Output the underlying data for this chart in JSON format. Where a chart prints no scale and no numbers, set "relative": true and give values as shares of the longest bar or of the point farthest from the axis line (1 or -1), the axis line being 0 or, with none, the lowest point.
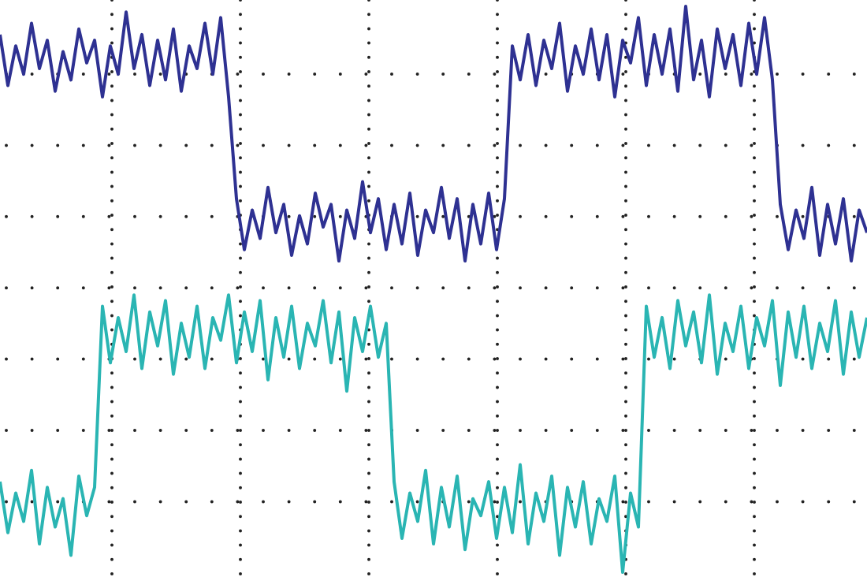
{
  "chart_data": {
    "type": "line",
    "relative": true,
    "grid": true,
    "line_style": "solid",
    "categories": [
      null,
      null,
      null,
      null,
      null,
      null,
      null,
      null,
      null,
      null,
      null,
      null,
      null,
      null,
      null,
      null,
      null,
      null,
      null,
      null,
      null,
      null,
      null,
      null,
      null,
      null,
      null,
      null,
      null,
      null,
      null,
      null,
      null,
      null,
      null,
      null,
      null,
      null,
      null,
      null,
      null,
      null,
      null,
      null,
      null,
      null,
      null,
      null,
      null,
      null,
      null,
      null,
      null,
      null,
      null,
      null,
      null,
      null,
      null,
      null,
      null,
      null,
      null,
      null,
      null,
      null,
      null,
      null,
      null,
      null,
      null,
      null,
      null,
      null,
      null,
      null,
      null,
      null,
      null,
      null,
      null,
      null,
      null,
      null,
      null,
      null,
      null,
      null,
      null,
      null,
      null,
      null,
      null,
      null,
      null,
      null,
      null,
      null,
      null,
      null,
      null,
      null,
      null,
      null,
      null,
      null,
      null,
      null,
      null,
      null,
      null
    ],
    "series": [
      {
        "color": "#2e3192",
        "values": [
          0.95,
          0.86,
          0.93,
          0.88,
          0.97,
          0.89,
          0.94,
          0.85,
          0.92,
          0.87,
          0.96,
          0.9,
          0.94,
          0.84,
          0.93,
          0.88,
          0.99,
          0.89,
          0.95,
          0.86,
          0.94,
          0.87,
          0.96,
          0.85,
          0.93,
          0.89,
          0.97,
          0.88,
          0.98,
          0.84,
          0.66,
          0.57,
          0.64,
          0.59,
          0.68,
          0.6,
          0.65,
          0.56,
          0.63,
          0.58,
          0.67,
          0.61,
          0.65,
          0.55,
          0.64,
          0.59,
          0.69,
          0.6,
          0.66,
          0.57,
          0.65,
          0.58,
          0.67,
          0.56,
          0.64,
          0.6,
          0.68,
          0.59,
          0.66,
          0.55,
          0.65,
          0.58,
          0.67,
          0.57,
          0.66,
          0.93,
          0.87,
          0.95,
          0.86,
          0.94,
          0.89,
          0.97,
          0.85,
          0.93,
          0.88,
          0.96,
          0.87,
          0.95,
          0.84,
          0.94,
          0.9,
          0.98,
          0.86,
          0.95,
          0.88,
          0.96,
          0.85,
          1.0,
          0.87,
          0.94,
          0.84,
          0.96,
          0.89,
          0.95,
          0.86,
          0.97,
          0.88,
          0.98,
          0.87,
          0.65,
          0.57,
          0.64,
          0.59,
          0.68,
          0.56,
          0.65,
          0.58,
          0.66,
          0.55,
          0.64,
          0.6
        ]
      },
      {
        "color": "#2ab5b3",
        "values": [
          0.16,
          0.07,
          0.14,
          0.09,
          0.18,
          0.05,
          0.15,
          0.08,
          0.13,
          0.03,
          0.17,
          0.1,
          0.15,
          0.47,
          0.37,
          0.45,
          0.39,
          0.49,
          0.36,
          0.46,
          0.4,
          0.48,
          0.35,
          0.44,
          0.38,
          0.47,
          0.36,
          0.45,
          0.41,
          0.49,
          0.37,
          0.46,
          0.39,
          0.48,
          0.34,
          0.45,
          0.38,
          0.47,
          0.36,
          0.44,
          0.4,
          0.48,
          0.37,
          0.46,
          0.32,
          0.45,
          0.39,
          0.47,
          0.38,
          0.44,
          0.16,
          0.06,
          0.14,
          0.09,
          0.18,
          0.05,
          0.15,
          0.08,
          0.17,
          0.04,
          0.13,
          0.1,
          0.16,
          0.06,
          0.15,
          0.07,
          0.19,
          0.05,
          0.14,
          0.09,
          0.17,
          0.03,
          0.15,
          0.08,
          0.16,
          0.05,
          0.13,
          0.09,
          0.17,
          0.0,
          0.14,
          0.08,
          0.47,
          0.38,
          0.45,
          0.36,
          0.48,
          0.4,
          0.46,
          0.37,
          0.49,
          0.35,
          0.44,
          0.39,
          0.47,
          0.36,
          0.45,
          0.4,
          0.48,
          0.33,
          0.46,
          0.38,
          0.47,
          0.36,
          0.44,
          0.39,
          0.48,
          0.35,
          0.46,
          0.38,
          0.45
        ]
      }
    ]
  }
}
